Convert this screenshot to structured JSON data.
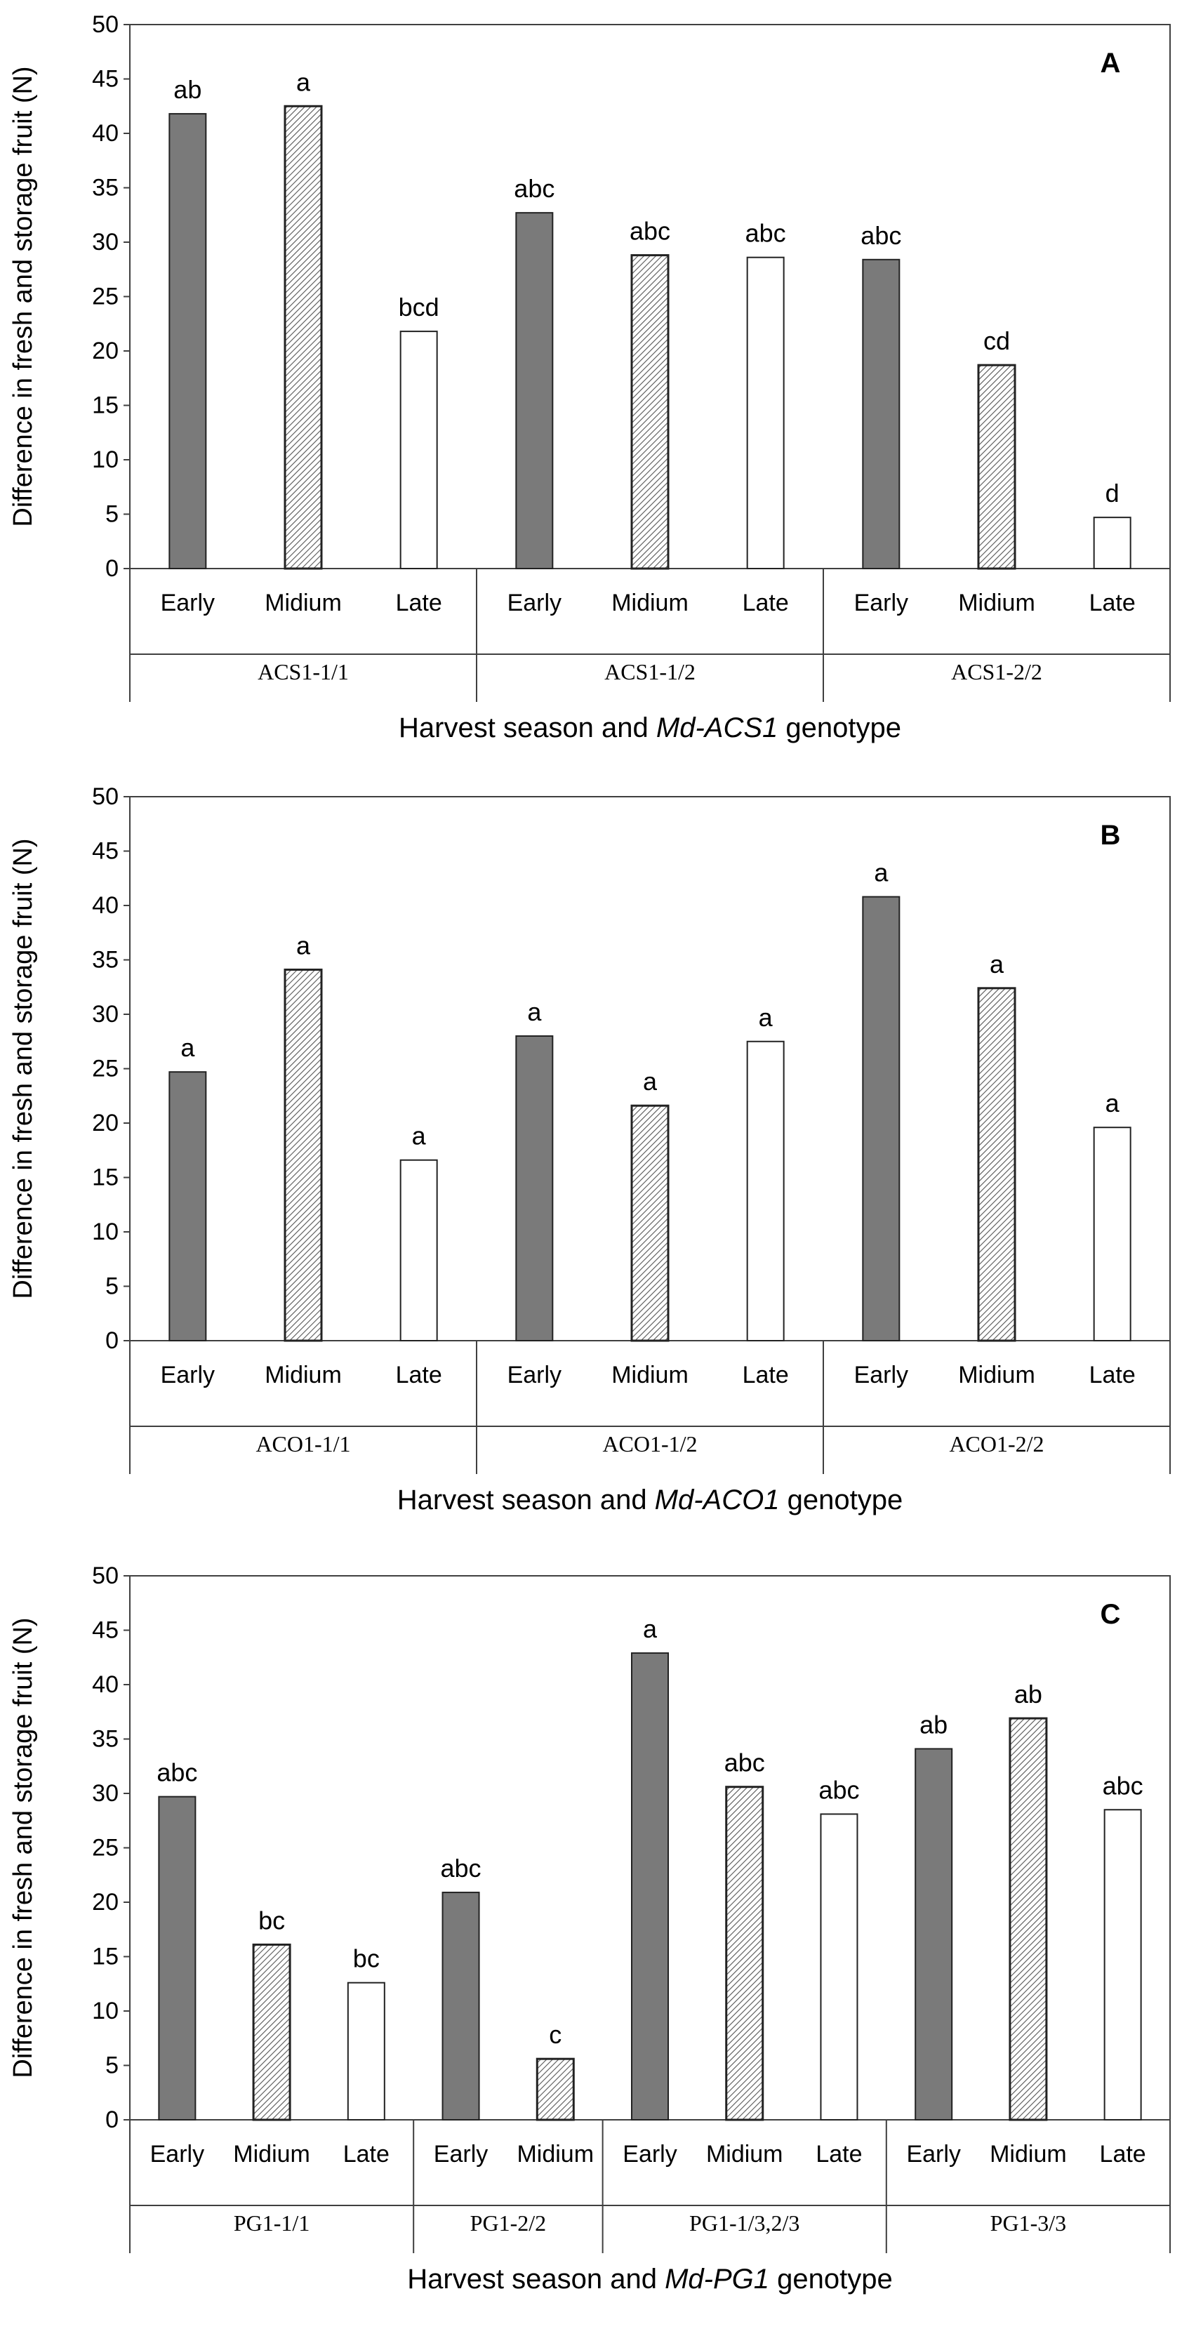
{
  "chart_data": [
    {
      "type": "bar",
      "panel_letter": "A",
      "ylabel": "Difference in fresh and storage fruit (N)",
      "xlabel": "Harvest season and Md-ACS1 genotype",
      "xlabel_parts": [
        "Harvest season and ",
        "Md-ACS1",
        " genotype"
      ],
      "ylim": [
        0,
        50
      ],
      "yticks": [
        0,
        5,
        10,
        15,
        20,
        25,
        30,
        35,
        40,
        45,
        50
      ],
      "groups": [
        {
          "label": "ACS1-1/1",
          "bars": [
            {
              "season": "Early",
              "value": 41.8,
              "letter": "ab"
            },
            {
              "season": "Midium",
              "value": 42.5,
              "letter": "a"
            },
            {
              "season": "Late",
              "value": 21.8,
              "letter": "bcd"
            }
          ]
        },
        {
          "label": "ACS1-1/2",
          "bars": [
            {
              "season": "Early",
              "value": 32.7,
              "letter": "abc"
            },
            {
              "season": "Midium",
              "value": 28.8,
              "letter": "abc"
            },
            {
              "season": "Late",
              "value": 28.6,
              "letter": "abc"
            }
          ]
        },
        {
          "label": "ACS1-2/2",
          "bars": [
            {
              "season": "Early",
              "value": 28.4,
              "letter": "abc"
            },
            {
              "season": "Midium",
              "value": 18.7,
              "letter": "cd"
            },
            {
              "season": "Late",
              "value": 4.7,
              "letter": "d"
            }
          ]
        }
      ]
    },
    {
      "type": "bar",
      "panel_letter": "B",
      "ylabel": "Difference in fresh and storage fruit (N)",
      "xlabel": "Harvest season and Md-ACO1 genotype",
      "xlabel_parts": [
        "Harvest season and ",
        "Md-ACO1",
        " genotype"
      ],
      "ylim": [
        0,
        50
      ],
      "yticks": [
        0,
        5,
        10,
        15,
        20,
        25,
        30,
        35,
        40,
        45,
        50
      ],
      "groups": [
        {
          "label": "ACO1-1/1",
          "bars": [
            {
              "season": "Early",
              "value": 24.7,
              "letter": "a"
            },
            {
              "season": "Midium",
              "value": 34.1,
              "letter": "a"
            },
            {
              "season": "Late",
              "value": 16.6,
              "letter": "a"
            }
          ]
        },
        {
          "label": "ACO1-1/2",
          "bars": [
            {
              "season": "Early",
              "value": 28.0,
              "letter": "a"
            },
            {
              "season": "Midium",
              "value": 21.6,
              "letter": "a"
            },
            {
              "season": "Late",
              "value": 27.5,
              "letter": "a"
            }
          ]
        },
        {
          "label": "ACO1-2/2",
          "bars": [
            {
              "season": "Early",
              "value": 40.8,
              "letter": "a"
            },
            {
              "season": "Midium",
              "value": 32.4,
              "letter": "a"
            },
            {
              "season": "Late",
              "value": 19.6,
              "letter": "a"
            }
          ]
        }
      ]
    },
    {
      "type": "bar",
      "panel_letter": "C",
      "ylabel": "Difference in fresh and storage fruit (N)",
      "xlabel": "Harvest season and Md-PG1 genotype",
      "xlabel_parts": [
        "Harvest season and ",
        "Md-PG1",
        " genotype"
      ],
      "ylim": [
        0,
        50
      ],
      "yticks": [
        0,
        5,
        10,
        15,
        20,
        25,
        30,
        35,
        40,
        45,
        50
      ],
      "groups": [
        {
          "label": "PG1-1/1",
          "bars": [
            {
              "season": "Early",
              "value": 29.7,
              "letter": "abc"
            },
            {
              "season": "Midium",
              "value": 16.1,
              "letter": "bc"
            },
            {
              "season": "Late",
              "value": 12.6,
              "letter": "bc"
            }
          ]
        },
        {
          "label": "PG1-2/2",
          "bars": [
            {
              "season": "Early",
              "value": 20.9,
              "letter": "abc"
            },
            {
              "season": "Midium",
              "value": 5.6,
              "letter": "c"
            }
          ]
        },
        {
          "label": "PG1-1/3,2/3",
          "bars": [
            {
              "season": "Early",
              "value": 42.9,
              "letter": "a"
            },
            {
              "season": "Midium",
              "value": 30.6,
              "letter": "abc"
            },
            {
              "season": "Late",
              "value": 28.1,
              "letter": "abc"
            }
          ]
        },
        {
          "label": "PG1-3/3",
          "bars": [
            {
              "season": "Early",
              "value": 34.1,
              "letter": "ab"
            },
            {
              "season": "Midium",
              "value": 36.9,
              "letter": "ab"
            },
            {
              "season": "Late",
              "value": 28.5,
              "letter": "abc"
            }
          ]
        }
      ]
    }
  ],
  "colors": {
    "early_fill": "#7a7a7a",
    "late_fill": "#ffffff",
    "hatch_line": "#555555",
    "axis": "#404040",
    "text": "#000000"
  }
}
